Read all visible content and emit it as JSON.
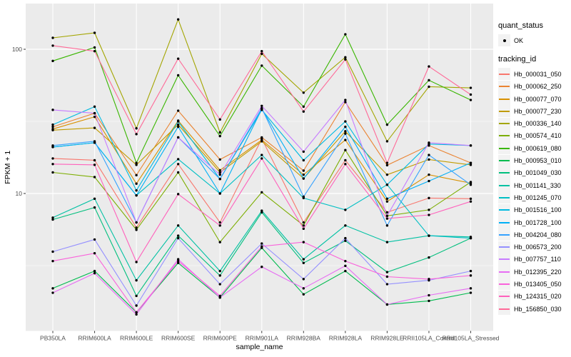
{
  "figure": {
    "y_axis": {
      "title": "FPKM + 1",
      "ticks": [
        {
          "label": "100",
          "value": 100
        },
        {
          "label": "10",
          "value": 10
        }
      ]
    },
    "x_axis": {
      "title": "sample_name"
    }
  },
  "legend": {
    "quant_status_title": "quant_status",
    "quant_status_items": [
      {
        "label": "OK",
        "marker": "black-point"
      }
    ],
    "tracking_id_title": "tracking_id"
  },
  "colors": {
    "page_bg": "#FFFFFF",
    "panel_bg": "#EBEBEB",
    "grid": "#FFFFFF",
    "tick_text": "#4D4D4D",
    "axis_title_text": "#000000",
    "point": "#000000",
    "legend_key_bg": "#F2F2F2"
  },
  "chart_data": {
    "type": "line",
    "log_scale_y": true,
    "title": "",
    "xlabel": "sample_name",
    "ylabel": "FPKM + 1",
    "y_tick_values": [
      10,
      100
    ],
    "y_minor_values": [
      3.162,
      31.62
    ],
    "ylim": [
      1.1,
      210
    ],
    "grid": "on",
    "legend_position": "right",
    "point_marker": {
      "shape": "circle",
      "color": "#000000"
    },
    "categories": [
      "PB350LA",
      "RRIM600LA",
      "RRIM600LE",
      "RRIM600SE",
      "RRIM600PE",
      "RRIM901LA",
      "RRIM928BA",
      "RRIM928LA",
      "RRIM928LE",
      "RRII105LA_Control",
      "RRII105LA_Stressed"
    ],
    "series": [
      {
        "name": "Hb_000031_050",
        "color": "#F8766D",
        "values": [
          17.5,
          17,
          5.8,
          16,
          6.3,
          24,
          6.3,
          17,
          7.4,
          9.3,
          9.2
        ]
      },
      {
        "name": "Hb_000062_250",
        "color": "#EA8331",
        "values": [
          29,
          36,
          13.4,
          37.5,
          17.2,
          24.5,
          14.4,
          43,
          15.7,
          21.5,
          16.3
        ]
      },
      {
        "name": "Hb_000077_070",
        "color": "#D89000",
        "values": [
          28,
          34,
          11.7,
          32,
          14.5,
          23.5,
          13.5,
          23.5,
          8.8,
          13.5,
          11.8
        ]
      },
      {
        "name": "Hb_000077_230",
        "color": "#C09B00",
        "values": [
          27.5,
          28.5,
          15.8,
          30,
          14,
          23,
          12.7,
          27,
          13.5,
          17.2,
          15.8
        ]
      },
      {
        "name": "Hb_000336_140",
        "color": "#A3A500",
        "values": [
          120,
          130,
          28.3,
          161,
          26.5,
          93,
          50,
          88,
          23,
          55,
          54
        ]
      },
      {
        "name": "Hb_000574_410",
        "color": "#7CAE00",
        "values": [
          14,
          13,
          5.6,
          14,
          4.6,
          10.2,
          6.0,
          20,
          7.0,
          7.7,
          12.0
        ]
      },
      {
        "name": "Hb_000619_080",
        "color": "#39B600",
        "values": [
          83,
          103,
          16.3,
          66,
          25,
          77,
          40,
          127,
          30,
          61,
          44.5
        ]
      },
      {
        "name": "Hb_000953_010",
        "color": "#00BB4E",
        "values": [
          2.2,
          2.9,
          1.5,
          3.3,
          1.9,
          4.2,
          2.0,
          2.9,
          1.7,
          1.8,
          2.05
        ]
      },
      {
        "name": "Hb_001049_030",
        "color": "#00BF7D",
        "values": [
          6.6,
          8.0,
          1.95,
          5.1,
          2.7,
          7.4,
          3.3,
          4.7,
          2.85,
          3.6,
          4.9
        ]
      },
      {
        "name": "Hb_001141_330",
        "color": "#00C1A3",
        "values": [
          6.8,
          9.2,
          2.5,
          6.0,
          2.9,
          7.6,
          3.5,
          6.0,
          4.6,
          5.1,
          5.0
        ]
      },
      {
        "name": "Hb_001245_070",
        "color": "#00BFC4",
        "values": [
          21,
          22.5,
          9.7,
          17.3,
          10,
          18.5,
          9.3,
          7.7,
          11.5,
          5.1,
          4.9
        ]
      },
      {
        "name": "Hb_001516_100",
        "color": "#00BAE0",
        "values": [
          30,
          40,
          10.5,
          31.6,
          12.6,
          38,
          17,
          31.6,
          11.5,
          22,
          21.5
        ]
      },
      {
        "name": "Hb_001728_100",
        "color": "#00B0F6",
        "values": [
          21,
          22.5,
          9.7,
          29,
          10,
          38.5,
          12.7,
          29,
          9.2,
          12.2,
          16.3
        ]
      },
      {
        "name": "Hb_004204_080",
        "color": "#35A2FF",
        "values": [
          21.5,
          23,
          6.3,
          24.5,
          12.6,
          39,
          9.5,
          26,
          6.0,
          18.5,
          11.5
        ]
      },
      {
        "name": "Hb_006573_200",
        "color": "#9590FF",
        "values": [
          3.95,
          4.8,
          1.67,
          4.9,
          2.35,
          4.5,
          2.55,
          4.9,
          2.35,
          2.5,
          2.9
        ]
      },
      {
        "name": "Hb_007757_110",
        "color": "#C77CFF",
        "values": [
          38,
          36,
          6.3,
          24.5,
          13.5,
          40.5,
          19.5,
          44.5,
          7.0,
          22.5,
          21.5
        ]
      },
      {
        "name": "Hb_012395_220",
        "color": "#E76BF3",
        "values": [
          2.05,
          2.8,
          1.45,
          3.5,
          1.9,
          3.1,
          2.2,
          3.15,
          1.7,
          1.97,
          2.2
        ]
      },
      {
        "name": "Hb_013405_050",
        "color": "#FA62DB",
        "values": [
          3.4,
          3.85,
          1.5,
          3.4,
          1.95,
          4.3,
          4.6,
          3.4,
          2.65,
          2.55,
          2.7
        ]
      },
      {
        "name": "Hb_124315_020",
        "color": "#FF62BC",
        "values": [
          16,
          15.8,
          3.35,
          9.9,
          6.0,
          17.5,
          5.7,
          16,
          6.7,
          7.1,
          8.8
        ]
      },
      {
        "name": "Hb_156850_030",
        "color": "#FF6A98",
        "values": [
          106,
          97,
          25.8,
          86,
          32.6,
          97,
          37,
          85,
          16.3,
          76,
          48.5
        ]
      }
    ]
  }
}
